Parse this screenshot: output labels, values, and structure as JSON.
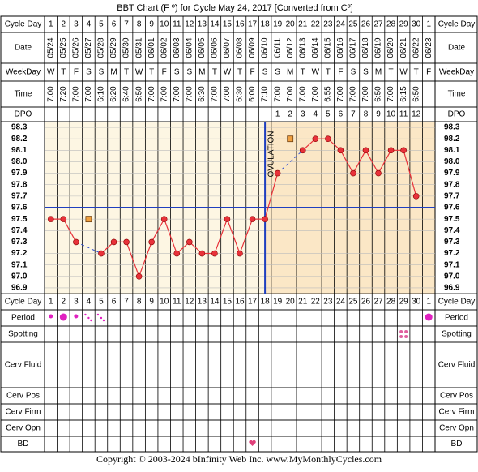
{
  "chart_data": {
    "type": "line",
    "title": "BBT Chart (F º) for Cycle May 24, 2017  [Converted from Cº]",
    "row_labels": [
      "Cycle Day",
      "Date",
      "WeekDay",
      "Time",
      "DPO",
      "Cycle Day",
      "Period",
      "Spotting",
      "Cerv Fluid",
      "Cerv Pos",
      "Cerv Firm",
      "Cerv Opn",
      "BD"
    ],
    "categories": [
      "1",
      "2",
      "3",
      "4",
      "5",
      "6",
      "7",
      "8",
      "9",
      "10",
      "11",
      "12",
      "13",
      "14",
      "15",
      "16",
      "17",
      "18",
      "19",
      "20",
      "21",
      "22",
      "23",
      "24",
      "25",
      "26",
      "27",
      "28",
      "29",
      "30",
      "1"
    ],
    "dates": [
      "05/24",
      "05/25",
      "05/26",
      "05/27",
      "05/28",
      "05/29",
      "05/30",
      "05/31",
      "06/01",
      "06/02",
      "06/03",
      "06/04",
      "06/05",
      "06/06",
      "06/07",
      "06/08",
      "06/09",
      "06/10",
      "06/11",
      "06/12",
      "06/13",
      "06/14",
      "06/15",
      "06/16",
      "06/17",
      "06/18",
      "06/19",
      "06/20",
      "06/21",
      "06/22",
      "06/23"
    ],
    "weekdays": [
      "W",
      "T",
      "F",
      "S",
      "S",
      "M",
      "T",
      "W",
      "T",
      "F",
      "S",
      "S",
      "M",
      "T",
      "W",
      "T",
      "F",
      "S",
      "S",
      "M",
      "T",
      "W",
      "T",
      "F",
      "S",
      "S",
      "M",
      "T",
      "W",
      "T",
      "F"
    ],
    "times": [
      "7:00",
      "7:20",
      "7:00",
      "7:00",
      "6:10",
      "6:20",
      "6:40",
      "6:50",
      "7:00",
      "7:00",
      "7:00",
      "7:00",
      "6:30",
      "7:00",
      "7:00",
      "6:30",
      "6:00",
      "7:10",
      "7:00",
      "7:00",
      "7:00",
      "7:00",
      "6:55",
      "7:00",
      "7:00",
      "7:00",
      "6:50",
      "7:00",
      "6:15",
      "6:50",
      null
    ],
    "dpo": [
      null,
      null,
      null,
      null,
      null,
      null,
      null,
      null,
      null,
      null,
      null,
      null,
      null,
      null,
      null,
      null,
      null,
      null,
      1,
      2,
      3,
      4,
      5,
      6,
      7,
      8,
      9,
      10,
      11,
      12,
      null
    ],
    "series": [
      {
        "color": "#e8323a",
        "values": [
          97.5,
          97.5,
          97.3,
          null,
          97.2,
          97.3,
          97.3,
          97.0,
          97.3,
          97.5,
          97.2,
          97.3,
          97.2,
          97.2,
          97.5,
          97.2,
          97.5,
          97.5,
          97.9,
          null,
          98.1,
          98.2,
          98.2,
          98.1,
          97.9,
          98.1,
          97.9,
          98.1,
          98.1,
          97.7,
          null
        ]
      },
      {
        "color": "#f0a040",
        "values": [
          null,
          null,
          null,
          97.5,
          null,
          null,
          null,
          null,
          null,
          null,
          null,
          null,
          null,
          null,
          null,
          null,
          null,
          null,
          null,
          98.2,
          null,
          null,
          null,
          null,
          null,
          null,
          null,
          null,
          null,
          null,
          null
        ]
      }
    ],
    "coverline": 97.6,
    "ovulation": {
      "label": "OVULATION",
      "day": 18
    },
    "ylim": [
      96.85,
      98.35
    ],
    "yticks": [
      {
        "value": 98.3,
        "label": "98.3"
      },
      {
        "value": 98.2,
        "label": "98.2"
      },
      {
        "value": 98.1,
        "label": "98.1"
      },
      {
        "value": 98,
        "label": "98.0"
      },
      {
        "value": 97.9,
        "label": "97.9"
      },
      {
        "value": 97.8,
        "label": "97.8"
      },
      {
        "value": 97.7,
        "label": "97.7"
      },
      {
        "value": 97.6,
        "label": "97.6"
      },
      {
        "value": 97.5,
        "label": "97.5"
      },
      {
        "value": 97.4,
        "label": "97.4"
      },
      {
        "value": 97.3,
        "label": "97.3"
      },
      {
        "value": 97.2,
        "label": "97.2"
      },
      {
        "value": 97.1,
        "label": "97.1"
      },
      {
        "value": 97,
        "label": "97.0"
      },
      {
        "value": 96.9,
        "label": "96.9"
      }
    ],
    "grid": true,
    "footer": "Copyright © 2003-2024 bInfinity Web Inc.     www.MyMonthlyCycles.com"
  }
}
